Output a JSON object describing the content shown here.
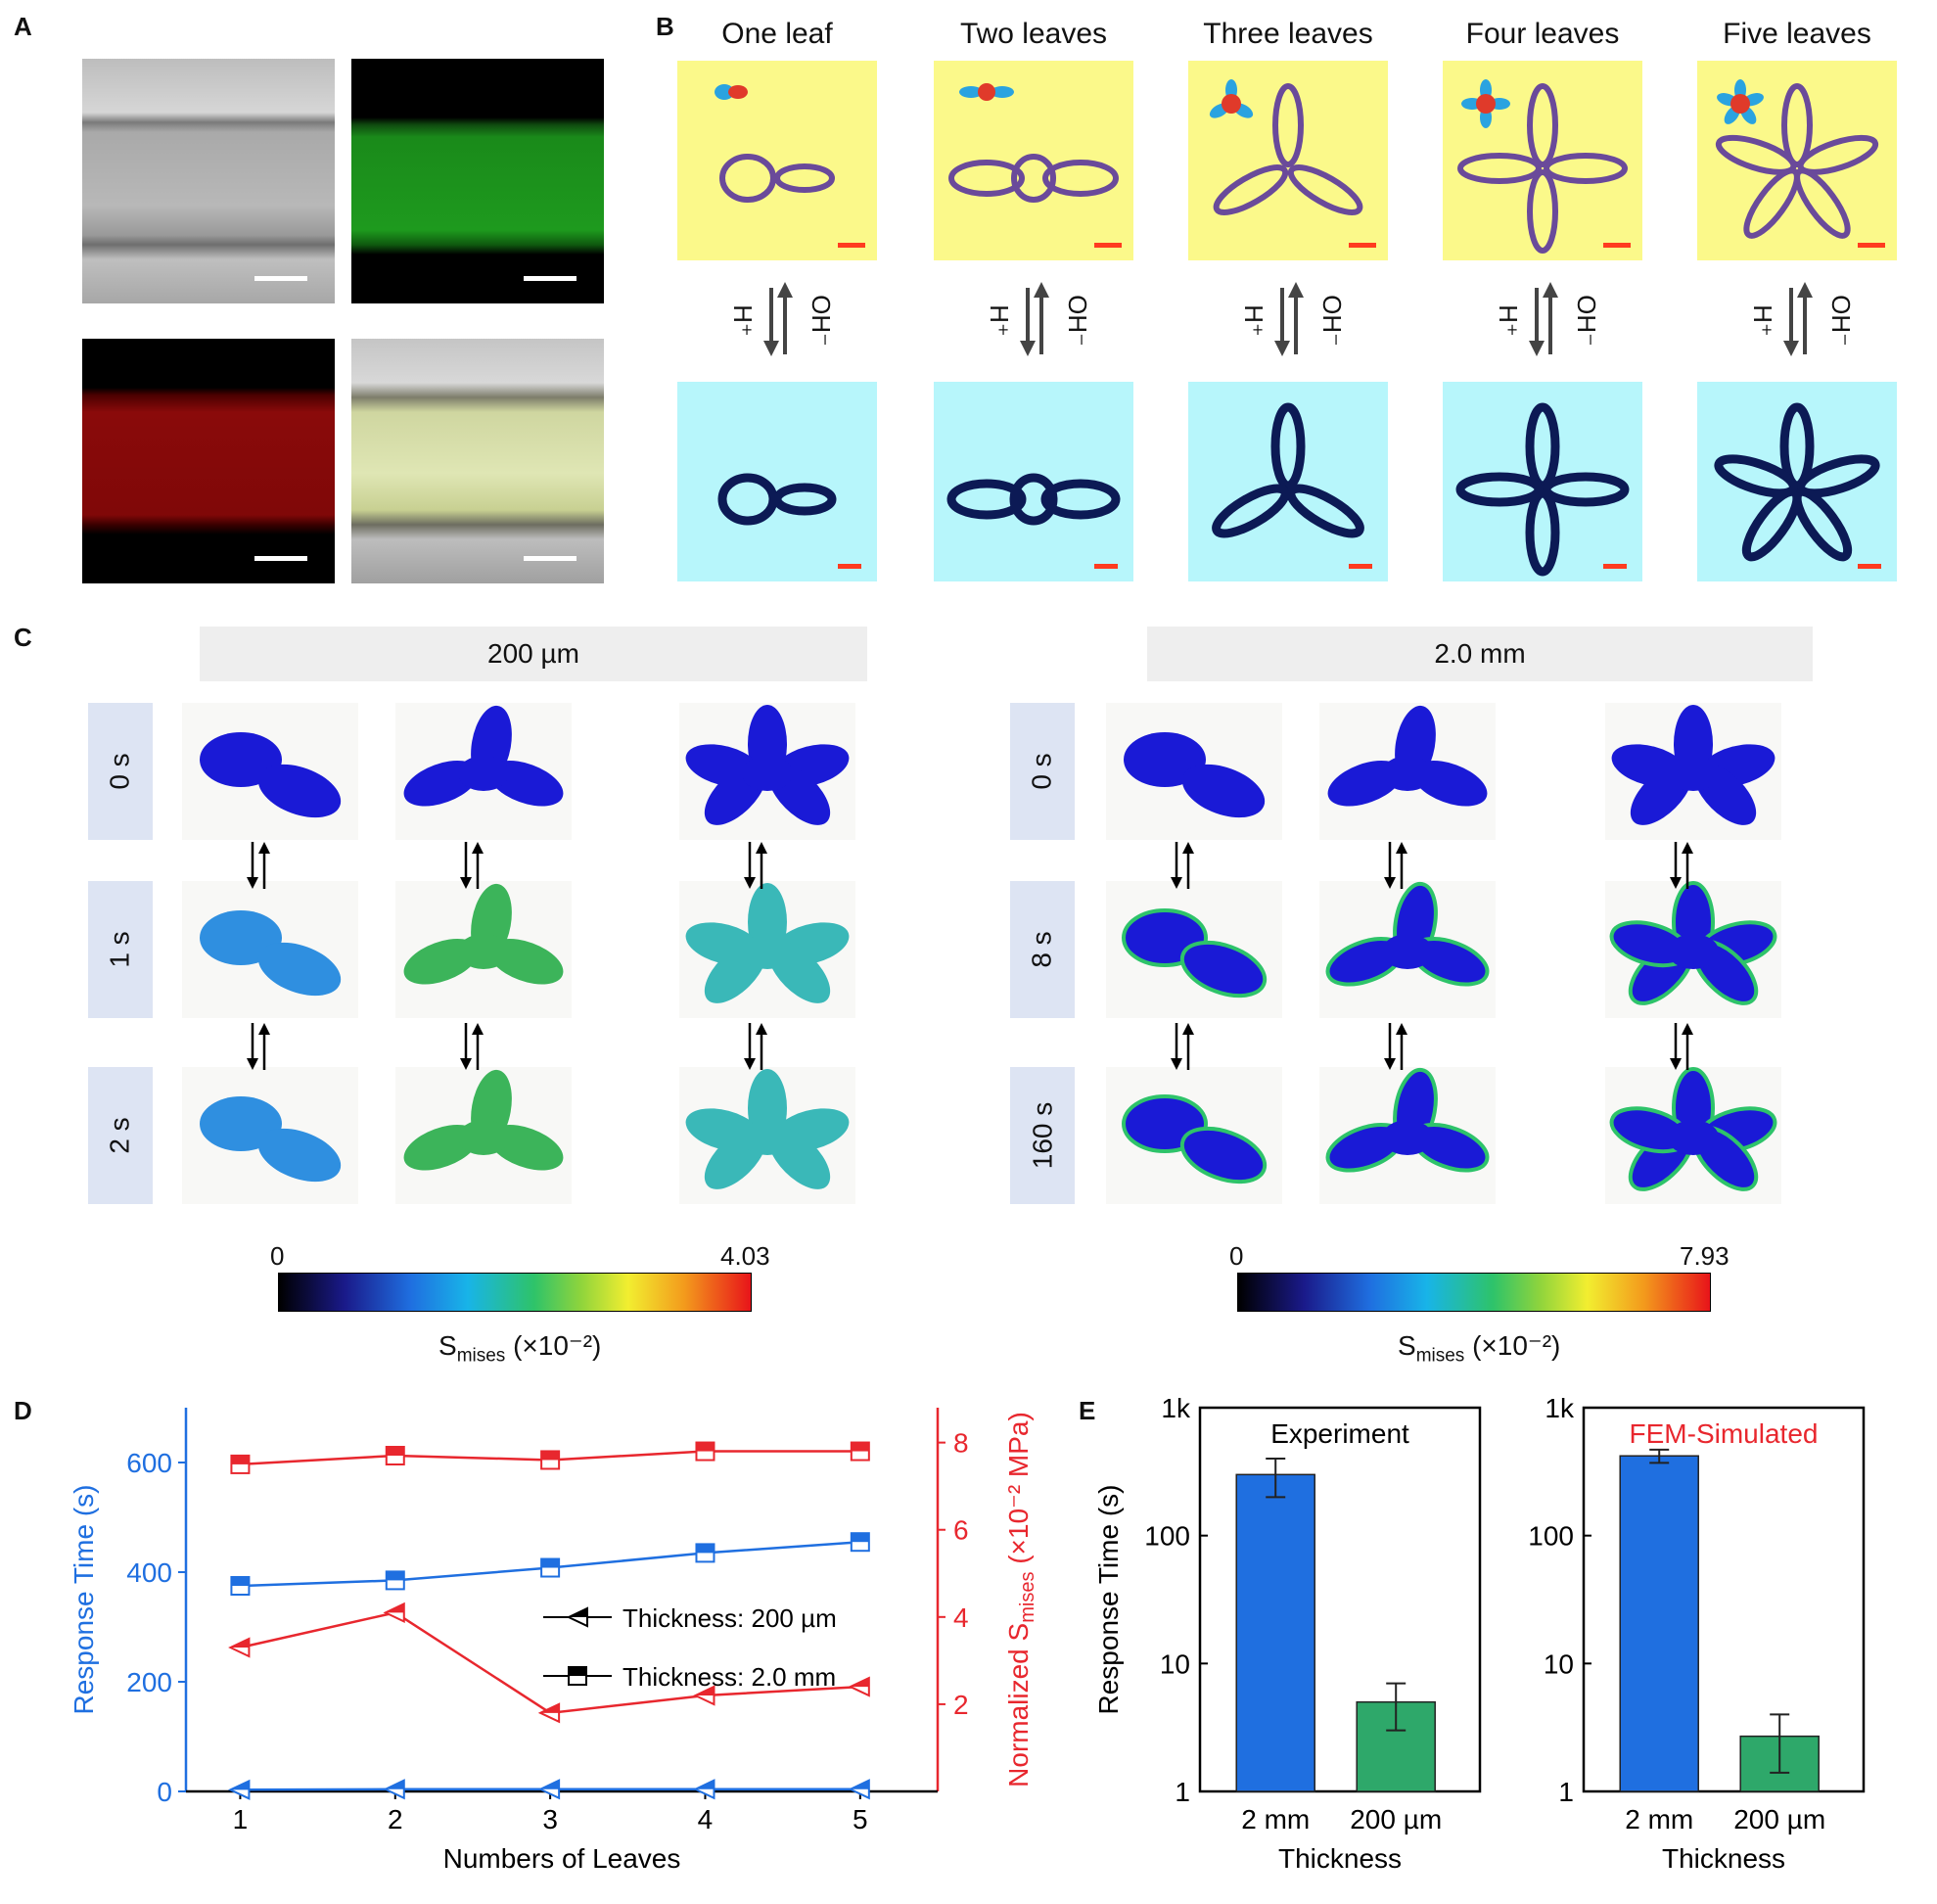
{
  "panels": {
    "a": "A",
    "b": "B",
    "c": "C",
    "d": "D",
    "e": "E"
  },
  "panel_b": {
    "titles": [
      "One leaf",
      "Two leaves",
      "Three leaves",
      "Four leaves",
      "Five leaves"
    ],
    "arrow_left": "H⁺",
    "arrow_right": "OH⁻"
  },
  "panel_c": {
    "left_banner": "200 µm",
    "right_banner": "2.0 mm",
    "left_times": [
      "0 s",
      "1 s",
      "2 s"
    ],
    "right_times": [
      "0 s",
      "8 s",
      "160 s"
    ],
    "left_cbar": {
      "min": "0",
      "max": "4.03",
      "label_main": "S",
      "label_sub": "mises",
      "label_unit": " (×10⁻²)"
    },
    "right_cbar": {
      "min": "0",
      "max": "7.93",
      "label_main": "S",
      "label_sub": "mises",
      "label_unit": " (×10⁻²)"
    },
    "colors": {
      "deep": "#1a1ad6",
      "light_blue": "#2f8fe0",
      "green": "#3cb45a",
      "teal": "#3ab8b8"
    }
  },
  "chart_data": [
    {
      "type": "line",
      "xlabel": "Numbers of Leaves",
      "ylabel_left": "Response Time (s)",
      "ylabel_right": "Normalized S",
      "ylabel_right_sub": "mises",
      "ylabel_right_unit": " (×10⁻² MPa)",
      "x": [
        1,
        2,
        3,
        4,
        5
      ],
      "xticks": [
        "1",
        "2",
        "3",
        "4",
        "5"
      ],
      "ylim_left": [
        0,
        700
      ],
      "yticks_left": [
        "0",
        "200",
        "400",
        "600"
      ],
      "ylim_right": [
        0,
        8.8
      ],
      "yticks_right": [
        "2",
        "4",
        "6",
        "8"
      ],
      "legend": [
        "Thickness: 200 µm",
        "Thickness: 2.0 mm"
      ],
      "series": [
        {
          "name": "Thickness: 200 µm",
          "axis": "left",
          "color": "#1f6fe0",
          "values": [
            3,
            4,
            4,
            4,
            4
          ]
        },
        {
          "name": "Thickness: 2.0 mm",
          "axis": "left",
          "color": "#1f6fe0",
          "values": [
            375,
            385,
            408,
            435,
            455
          ]
        },
        {
          "name": "Thickness: 200 µm",
          "axis": "right",
          "color": "#e8272e",
          "values": [
            3.3,
            4.1,
            1.8,
            2.2,
            2.4
          ]
        },
        {
          "name": "Thickness: 2.0 mm",
          "axis": "right",
          "color": "#e8272e",
          "values": [
            7.5,
            7.7,
            7.6,
            7.8,
            7.8
          ]
        }
      ]
    },
    {
      "type": "bar",
      "title": "Experiment",
      "xlabel": "Thickness",
      "ylabel": "Response Time (s)",
      "yscale": "log",
      "ylim": [
        1,
        1000
      ],
      "yticks": [
        "1",
        "10",
        "100",
        "1k"
      ],
      "categories": [
        "2 mm",
        "200 µm"
      ],
      "values": [
        300,
        5
      ],
      "errors": [
        [
          200,
          400
        ],
        [
          3,
          7
        ]
      ],
      "colors": [
        "#1f6fe0",
        "#2ea86a"
      ]
    },
    {
      "type": "bar",
      "title": "FEM-Simulated",
      "title_color": "#e8272e",
      "xlabel": "Thickness",
      "yscale": "log",
      "ylim": [
        1,
        1000
      ],
      "yticks": [
        "1",
        "10",
        "100",
        "1k"
      ],
      "categories": [
        "2 mm",
        "200 µm"
      ],
      "values": [
        420,
        2.7
      ],
      "errors": [
        [
          370,
          470
        ],
        [
          1.4,
          4
        ]
      ],
      "colors": [
        "#1f6fe0",
        "#2ea86a"
      ]
    }
  ]
}
